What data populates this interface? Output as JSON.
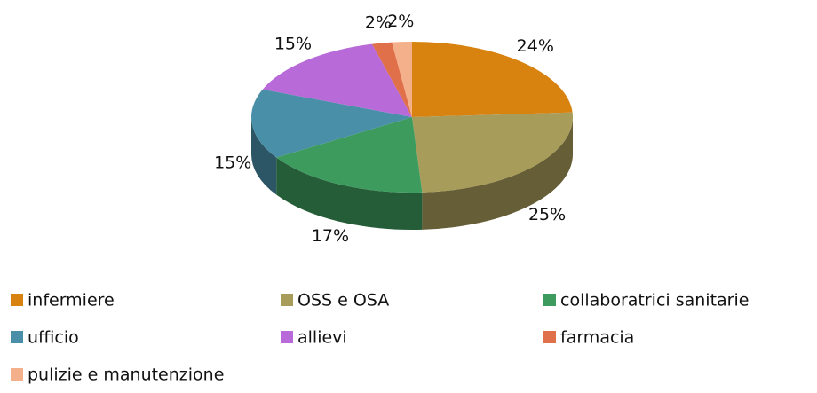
{
  "chart_data": {
    "type": "pie",
    "categories": [
      "infermiere",
      "OSS e OSA",
      "collaboratrici sanitarie",
      "ufficio",
      "allievi",
      "farmacia",
      "pulizie e manutenzione"
    ],
    "values": [
      24,
      25,
      17,
      15,
      15,
      2,
      2
    ],
    "value_labels": [
      "24%",
      "25%",
      "17%",
      "15%",
      "15%",
      "2%",
      "2%"
    ],
    "colors": [
      "#d8820f",
      "#a89c5a",
      "#3d9b5e",
      "#4a8fa8",
      "#b86ad8",
      "#e0704a",
      "#f4b08a"
    ],
    "legend": "bottom"
  }
}
